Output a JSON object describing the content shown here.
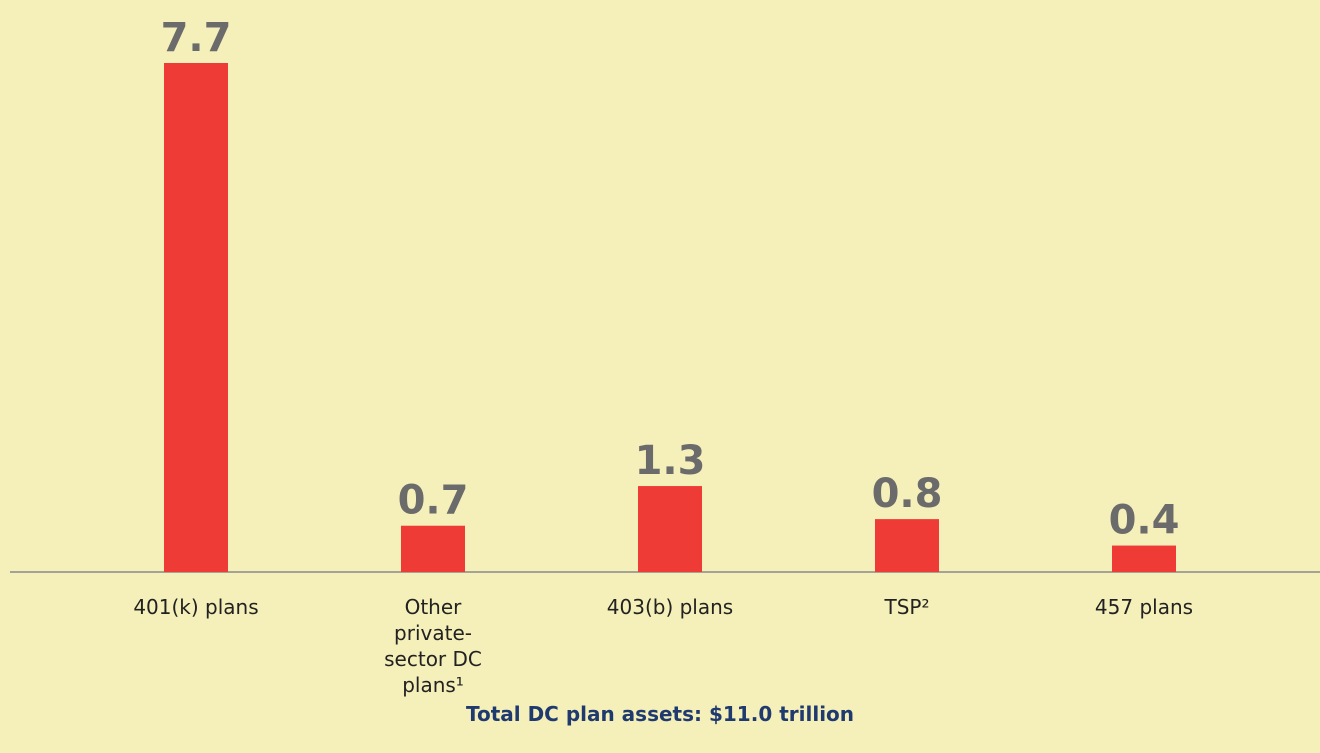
{
  "chart_data": {
    "type": "bar",
    "categories": [
      "401(k) plans",
      "Other private-sector DC plans¹",
      "403(b) plans",
      "TSP²",
      "457 plans"
    ],
    "values": [
      7.7,
      0.7,
      1.3,
      0.8,
      0.4
    ],
    "color": "#ee3b36",
    "annotation": "Total DC plan assets: $11.0 trillion"
  }
}
